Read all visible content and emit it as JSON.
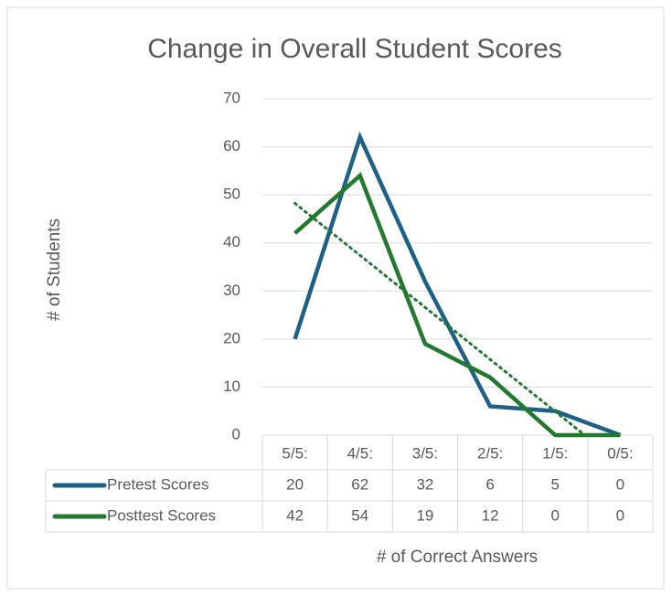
{
  "chart_data": {
    "type": "line",
    "title": "Change in Overall Student Scores",
    "x_label": "# of Correct Answers",
    "y_label": "# of Students",
    "categories": [
      "5/5:",
      "4/5:",
      "3/5:",
      "2/5:",
      "1/5:",
      "0/5:"
    ],
    "series": [
      {
        "name": "Pretest Scores",
        "color": "#1d6187",
        "values": [
          20,
          62,
          32,
          6,
          5,
          0
        ]
      },
      {
        "name": "Posttest Scores",
        "color": "#217a2e",
        "values": [
          42,
          54,
          19,
          12,
          0,
          0
        ],
        "trendline": "linear"
      }
    ],
    "ylim": [
      0,
      70
    ],
    "yticks": [
      0,
      10,
      20,
      30,
      40,
      50,
      60,
      70
    ],
    "grid": true,
    "data_table": true
  }
}
